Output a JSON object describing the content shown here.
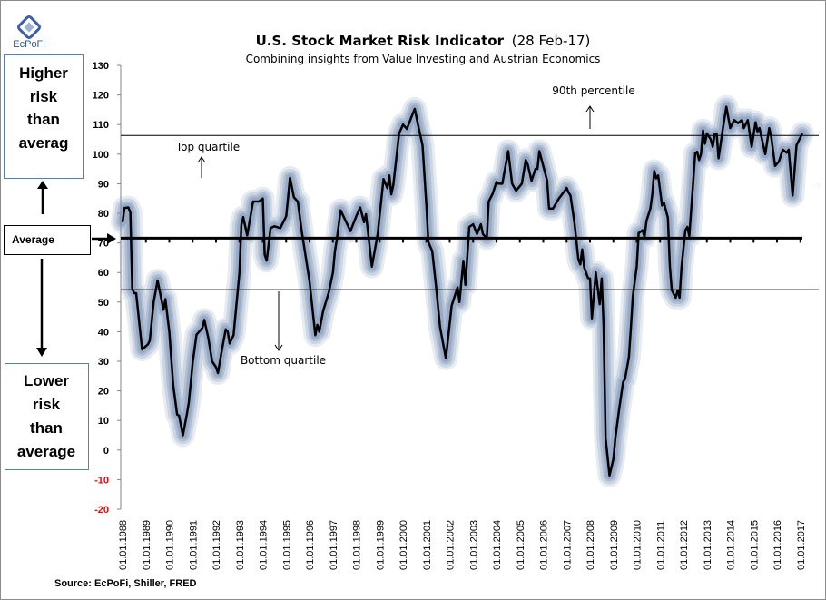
{
  "logo": {
    "text": "EcPoFi",
    "color": "#2f5597"
  },
  "colors": {
    "line": "#000000",
    "glow": "#7b93b8",
    "box_border": "#4f81bd",
    "negative_label": "#ff0000"
  },
  "side_boxes": {
    "higher": [
      "Higher",
      "risk",
      "than",
      "averag"
    ],
    "average": "Average",
    "lower": [
      "Lower",
      "risk",
      "than",
      "average"
    ]
  },
  "source": "Source: EcPoFi,  Shiller, FRED",
  "chart_data": {
    "type": "line",
    "title": "U.S. Stock Market Risk Indicator",
    "title_suffix": "(28 Feb-17)",
    "subtitle": "Combining insights from Value Investing and Austrian Economics",
    "ylim": [
      -20,
      130
    ],
    "yticks": [
      130,
      120,
      110,
      100,
      90,
      80,
      70,
      60,
      50,
      40,
      30,
      20,
      10,
      0,
      -10,
      -20
    ],
    "xticks": [
      "01.01.1988",
      "01.01.1989",
      "01.01.1990",
      "01.01.1991",
      "01.01.1992",
      "01.01.1993",
      "01.01.1994",
      "01.01.1995",
      "01.01.1996",
      "01.01.1997",
      "01.01.1998",
      "01.01.1999",
      "01.01.2000",
      "01.01.2001",
      "01.01.2002",
      "01.01.2003",
      "01.01.2004",
      "01.01.2005",
      "01.01.2006",
      "01.01.2007",
      "01.01.2008",
      "01.01.2009",
      "01.01.2010",
      "01.01.2011",
      "01.01.2012",
      "01.01.2013",
      "01.01.2014",
      "01.01.2015",
      "01.01.2016",
      "01.01.2017"
    ],
    "grid": false,
    "reference_lines": [
      {
        "name": "90th percentile",
        "value": 106.3
      },
      {
        "name": "Top quartile",
        "value": 90.6
      },
      {
        "name": "Average",
        "value": 71.6
      },
      {
        "name": "Bottom quartile",
        "value": 54.2
      }
    ],
    "annotations": {
      "p90": "90th percentile",
      "top": "Top quartile",
      "bottom": "Bottom quartile"
    },
    "series": [
      {
        "points": [
          [
            "1988-01",
            77
          ],
          [
            "1988-02",
            81.8
          ],
          [
            "1988-04",
            82
          ],
          [
            "1988-05",
            80.3
          ],
          [
            "1988-06",
            54.4
          ],
          [
            "1988-07",
            53
          ],
          [
            "1988-08",
            53
          ],
          [
            "1988-11",
            34
          ],
          [
            "1989-02",
            35.7
          ],
          [
            "1989-03",
            37
          ],
          [
            "1989-05",
            50
          ],
          [
            "1989-07",
            57.3
          ],
          [
            "1989-10",
            47.4
          ],
          [
            "1989-11",
            51
          ],
          [
            "1990-01",
            40
          ],
          [
            "1990-03",
            22
          ],
          [
            "1990-05",
            12
          ],
          [
            "1990-06",
            11.7
          ],
          [
            "1990-08",
            5
          ],
          [
            "1990-10",
            12
          ],
          [
            "1990-11",
            16
          ],
          [
            "1991-01",
            29.6
          ],
          [
            "1991-03",
            39
          ],
          [
            "1991-06",
            41.3
          ],
          [
            "1991-07",
            44
          ],
          [
            "1991-09",
            38
          ],
          [
            "1991-11",
            30
          ],
          [
            "1992-01",
            28
          ],
          [
            "1992-02",
            26
          ],
          [
            "1992-04",
            33.7
          ],
          [
            "1992-06",
            40.8
          ],
          [
            "1992-07",
            40
          ],
          [
            "1992-08",
            36
          ],
          [
            "1992-10",
            38.8
          ],
          [
            "1993-01",
            60
          ],
          [
            "1993-02",
            76
          ],
          [
            "1993-03",
            78.7
          ],
          [
            "1993-05",
            72.5
          ],
          [
            "1993-08",
            84
          ],
          [
            "1993-11",
            84
          ],
          [
            "1994-01",
            85
          ],
          [
            "1994-02",
            66
          ],
          [
            "1994-03",
            64
          ],
          [
            "1994-05",
            75
          ],
          [
            "1994-07",
            75.6
          ],
          [
            "1994-10",
            75
          ],
          [
            "1995-01",
            79
          ],
          [
            "1995-03",
            92
          ],
          [
            "1995-05",
            85.4
          ],
          [
            "1995-07",
            84
          ],
          [
            "1995-09",
            74
          ],
          [
            "1996-01",
            57
          ],
          [
            "1996-04",
            38.8
          ],
          [
            "1996-05",
            42.3
          ],
          [
            "1996-06",
            40
          ],
          [
            "1996-08",
            47
          ],
          [
            "1996-11",
            53.6
          ],
          [
            "1997-01",
            60
          ],
          [
            "1997-02",
            67
          ],
          [
            "1997-03",
            71
          ],
          [
            "1997-05",
            81
          ],
          [
            "1997-10",
            74
          ],
          [
            "1998-01",
            79
          ],
          [
            "1998-03",
            82
          ],
          [
            "1998-05",
            77
          ],
          [
            "1998-06",
            79.7
          ],
          [
            "1998-09",
            62
          ],
          [
            "1998-12",
            73
          ],
          [
            "1999-03",
            91.6
          ],
          [
            "1999-05",
            88.5
          ],
          [
            "1999-06",
            92.8
          ],
          [
            "1999-07",
            86.4
          ],
          [
            "1999-08",
            89.5
          ],
          [
            "1999-11",
            107
          ],
          [
            "2000-01",
            110
          ],
          [
            "2000-03",
            108.5
          ],
          [
            "2000-05",
            112
          ],
          [
            "2000-07",
            115.3
          ],
          [
            "2000-09",
            109
          ],
          [
            "2000-11",
            103
          ],
          [
            "2001-01",
            82.5
          ],
          [
            "2001-02",
            70.3
          ],
          [
            "2001-04",
            67.2
          ],
          [
            "2001-06",
            55
          ],
          [
            "2001-08",
            41.6
          ],
          [
            "2001-11",
            31
          ],
          [
            "2001-12",
            37
          ],
          [
            "2002-02",
            48.8
          ],
          [
            "2002-05",
            55
          ],
          [
            "2002-06",
            50
          ],
          [
            "2002-08",
            64
          ],
          [
            "2002-09",
            55.8
          ],
          [
            "2002-11",
            75.4
          ],
          [
            "2003-01",
            76.3
          ],
          [
            "2003-03",
            73
          ],
          [
            "2003-05",
            76.3
          ],
          [
            "2003-06",
            73
          ],
          [
            "2003-08",
            71.6
          ],
          [
            "2003-09",
            84
          ],
          [
            "2003-11",
            86.6
          ],
          [
            "2004-01",
            90.6
          ],
          [
            "2004-02",
            90
          ],
          [
            "2004-04",
            90
          ],
          [
            "2004-07",
            101
          ],
          [
            "2004-09",
            90
          ],
          [
            "2004-11",
            87.6
          ],
          [
            "2005-02",
            90
          ],
          [
            "2005-04",
            98
          ],
          [
            "2005-05",
            96.6
          ],
          [
            "2005-07",
            91
          ],
          [
            "2005-09",
            95
          ],
          [
            "2005-10",
            95
          ],
          [
            "2005-11",
            101
          ],
          [
            "2006-03",
            91
          ],
          [
            "2006-04",
            81.6
          ],
          [
            "2006-06",
            81.6
          ],
          [
            "2006-09",
            85
          ],
          [
            "2006-12",
            87.6
          ],
          [
            "2007-01",
            88.6
          ],
          [
            "2007-02",
            87
          ],
          [
            "2007-03",
            86
          ],
          [
            "2007-05",
            77
          ],
          [
            "2007-07",
            64.7
          ],
          [
            "2007-08",
            62.7
          ],
          [
            "2007-09",
            67.8
          ],
          [
            "2007-10",
            61.7
          ],
          [
            "2007-12",
            58.1
          ],
          [
            "2008-01",
            58
          ],
          [
            "2008-02",
            44.5
          ],
          [
            "2008-04",
            60
          ],
          [
            "2008-06",
            49.3
          ],
          [
            "2008-07",
            58
          ],
          [
            "2008-08",
            42
          ],
          [
            "2008-09",
            4
          ],
          [
            "2008-11",
            -8.6
          ],
          [
            "2009-01",
            -3
          ],
          [
            "2009-02",
            4
          ],
          [
            "2009-04",
            14
          ],
          [
            "2009-06",
            23
          ],
          [
            "2009-07",
            24
          ],
          [
            "2009-09",
            31.5
          ],
          [
            "2009-10",
            41.6
          ],
          [
            "2009-11",
            52
          ],
          [
            "2010-01",
            62
          ],
          [
            "2010-02",
            73.3
          ],
          [
            "2010-04",
            74.3
          ],
          [
            "2010-05",
            72
          ],
          [
            "2010-06",
            77.4
          ],
          [
            "2010-08",
            81.6
          ],
          [
            "2010-09",
            86.6
          ],
          [
            "2010-10",
            94.3
          ],
          [
            "2010-11",
            91.8
          ],
          [
            "2010-12",
            92.8
          ],
          [
            "2011-02",
            82.6
          ],
          [
            "2011-03",
            83.6
          ],
          [
            "2011-05",
            78.5
          ],
          [
            "2011-06",
            62
          ],
          [
            "2011-07",
            54
          ],
          [
            "2011-09",
            51.5
          ],
          [
            "2011-10",
            54
          ],
          [
            "2011-11",
            51.5
          ],
          [
            "2011-12",
            62
          ],
          [
            "2012-02",
            74.3
          ],
          [
            "2012-03",
            75.4
          ],
          [
            "2012-04",
            72.3
          ],
          [
            "2012-06",
            90.6
          ],
          [
            "2012-07",
            100.3
          ],
          [
            "2012-08",
            100.8
          ],
          [
            "2012-09",
            98
          ],
          [
            "2012-10",
            100
          ],
          [
            "2012-11",
            108
          ],
          [
            "2012-12",
            103.5
          ],
          [
            "2013-01",
            107
          ],
          [
            "2013-03",
            105
          ],
          [
            "2013-04",
            102.5
          ],
          [
            "2013-05",
            106.7
          ],
          [
            "2013-06",
            107
          ],
          [
            "2013-07",
            98.6
          ],
          [
            "2013-09",
            107.7
          ],
          [
            "2013-11",
            116
          ],
          [
            "2014-01",
            108.8
          ],
          [
            "2014-03",
            111.5
          ],
          [
            "2014-05",
            110.5
          ],
          [
            "2014-07",
            111.5
          ],
          [
            "2014-08",
            108.8
          ],
          [
            "2014-10",
            111.5
          ],
          [
            "2014-12",
            102.5
          ],
          [
            "2015-02",
            110.8
          ],
          [
            "2015-03",
            107.7
          ],
          [
            "2015-04",
            108.8
          ],
          [
            "2015-07",
            100
          ],
          [
            "2015-09",
            108.8
          ],
          [
            "2015-10",
            106
          ],
          [
            "2015-12",
            96
          ],
          [
            "2016-02",
            97.5
          ],
          [
            "2016-04",
            101.5
          ],
          [
            "2016-06",
            100.5
          ],
          [
            "2016-07",
            101.5
          ],
          [
            "2016-09",
            86
          ],
          [
            "2016-11",
            103
          ],
          [
            "2017-02",
            107
          ]
        ]
      }
    ]
  }
}
